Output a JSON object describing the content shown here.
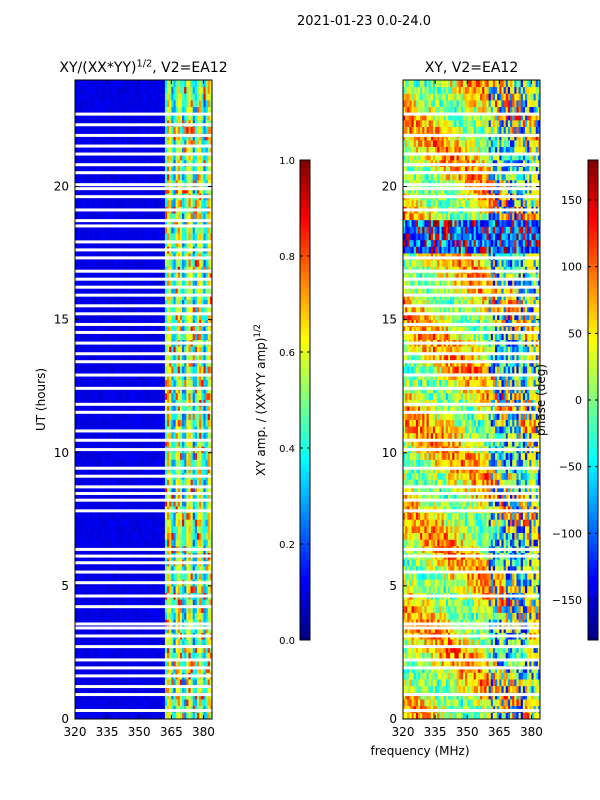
{
  "suptitle": "2021-01-23 0.0-24.0",
  "chart_data": [
    {
      "type": "heatmap",
      "title": "XY/(XX*YY)^{1/2}, V2=EA12",
      "title_base": "XY/(XX*YY)",
      "title_sup": "1/2",
      "title_suffix": ", V2=EA12",
      "xlabel": "",
      "ylabel": "UT (hours)",
      "xlim": [
        320,
        384
      ],
      "ylim": [
        0,
        24
      ],
      "xticks": [
        320,
        335,
        350,
        365,
        380
      ],
      "yticks": [
        0,
        5,
        10,
        15,
        20
      ],
      "colormap": "jet",
      "colorbar": {
        "label": "XY amp. / (XX*YY amp)^{1/2}",
        "label_base": "XY amp. / (XX*YY amp)",
        "label_sup": "1/2",
        "range": [
          0.0,
          1.0
        ],
        "ticks": [
          "0.0",
          "0.2",
          "0.4",
          "0.6",
          "0.8",
          "1.0"
        ]
      },
      "description": "Low amplitude (~0.05) below 362 MHz; elevated amplitude 0.2-0.7 in 362-381 MHz channels",
      "quiet_band_mhz": [
        320,
        362
      ],
      "active_band_mhz": [
        362,
        381
      ],
      "flagged_hours": [
        0.3,
        0.9,
        1.2,
        1.6,
        1.9,
        2.2,
        2.7,
        3.1,
        3.4,
        3.55,
        4.2,
        4.6,
        5.1,
        5.5,
        5.85,
        6.1,
        6.35,
        7.8,
        8.2,
        8.45,
        8.7,
        9.1,
        9.4,
        10.1,
        10.45,
        10.8,
        11.5,
        11.8,
        12.4,
        12.9,
        13.4,
        13.7,
        14.1,
        14.5,
        14.8,
        15.2,
        15.5,
        15.9,
        16.2,
        16.5,
        16.8,
        17.3,
        17.6,
        17.9,
        18.5,
        18.7,
        19.1,
        19.6,
        19.9,
        20.05,
        20.5,
        20.8,
        21.2,
        21.5,
        21.9,
        22.3,
        22.7
      ]
    },
    {
      "type": "heatmap",
      "title": "XY, V2=EA12",
      "xlabel": "frequency (MHz)",
      "ylabel": "",
      "xlim": [
        320,
        384
      ],
      "ylim": [
        0,
        24
      ],
      "xticks": [
        320,
        335,
        350,
        365,
        380
      ],
      "yticks": [
        0,
        5,
        10,
        15,
        20
      ],
      "colormap": "jet",
      "colorbar": {
        "label": "phase (deg)",
        "range": [
          -180,
          180
        ],
        "ticks": [
          "150",
          "100",
          "50",
          "0",
          "−50",
          "−100",
          "−150"
        ]
      },
      "description": "Phase mostly 0 to 120 deg (yellow/orange) with mixed blue regions; strongly negative phase band 17.5-18.8 h",
      "negative_band_hours": [
        17.5,
        18.8
      ],
      "flagged_hours": [
        0.3,
        0.9,
        1.9,
        2.2,
        2.7,
        3.1,
        3.4,
        3.55,
        4.6,
        5.5,
        6.1,
        6.35,
        7.8,
        8.2,
        8.45,
        8.7,
        9.4,
        10.1,
        10.45,
        11.5,
        11.8,
        12.4,
        12.9,
        13.4,
        13.7,
        14.1,
        14.5,
        14.8,
        15.2,
        15.5,
        15.9,
        16.2,
        16.5,
        16.8,
        17.3,
        19.1,
        19.6,
        19.9,
        20.05,
        20.5,
        20.8,
        21.2,
        21.9,
        22.7
      ]
    }
  ]
}
